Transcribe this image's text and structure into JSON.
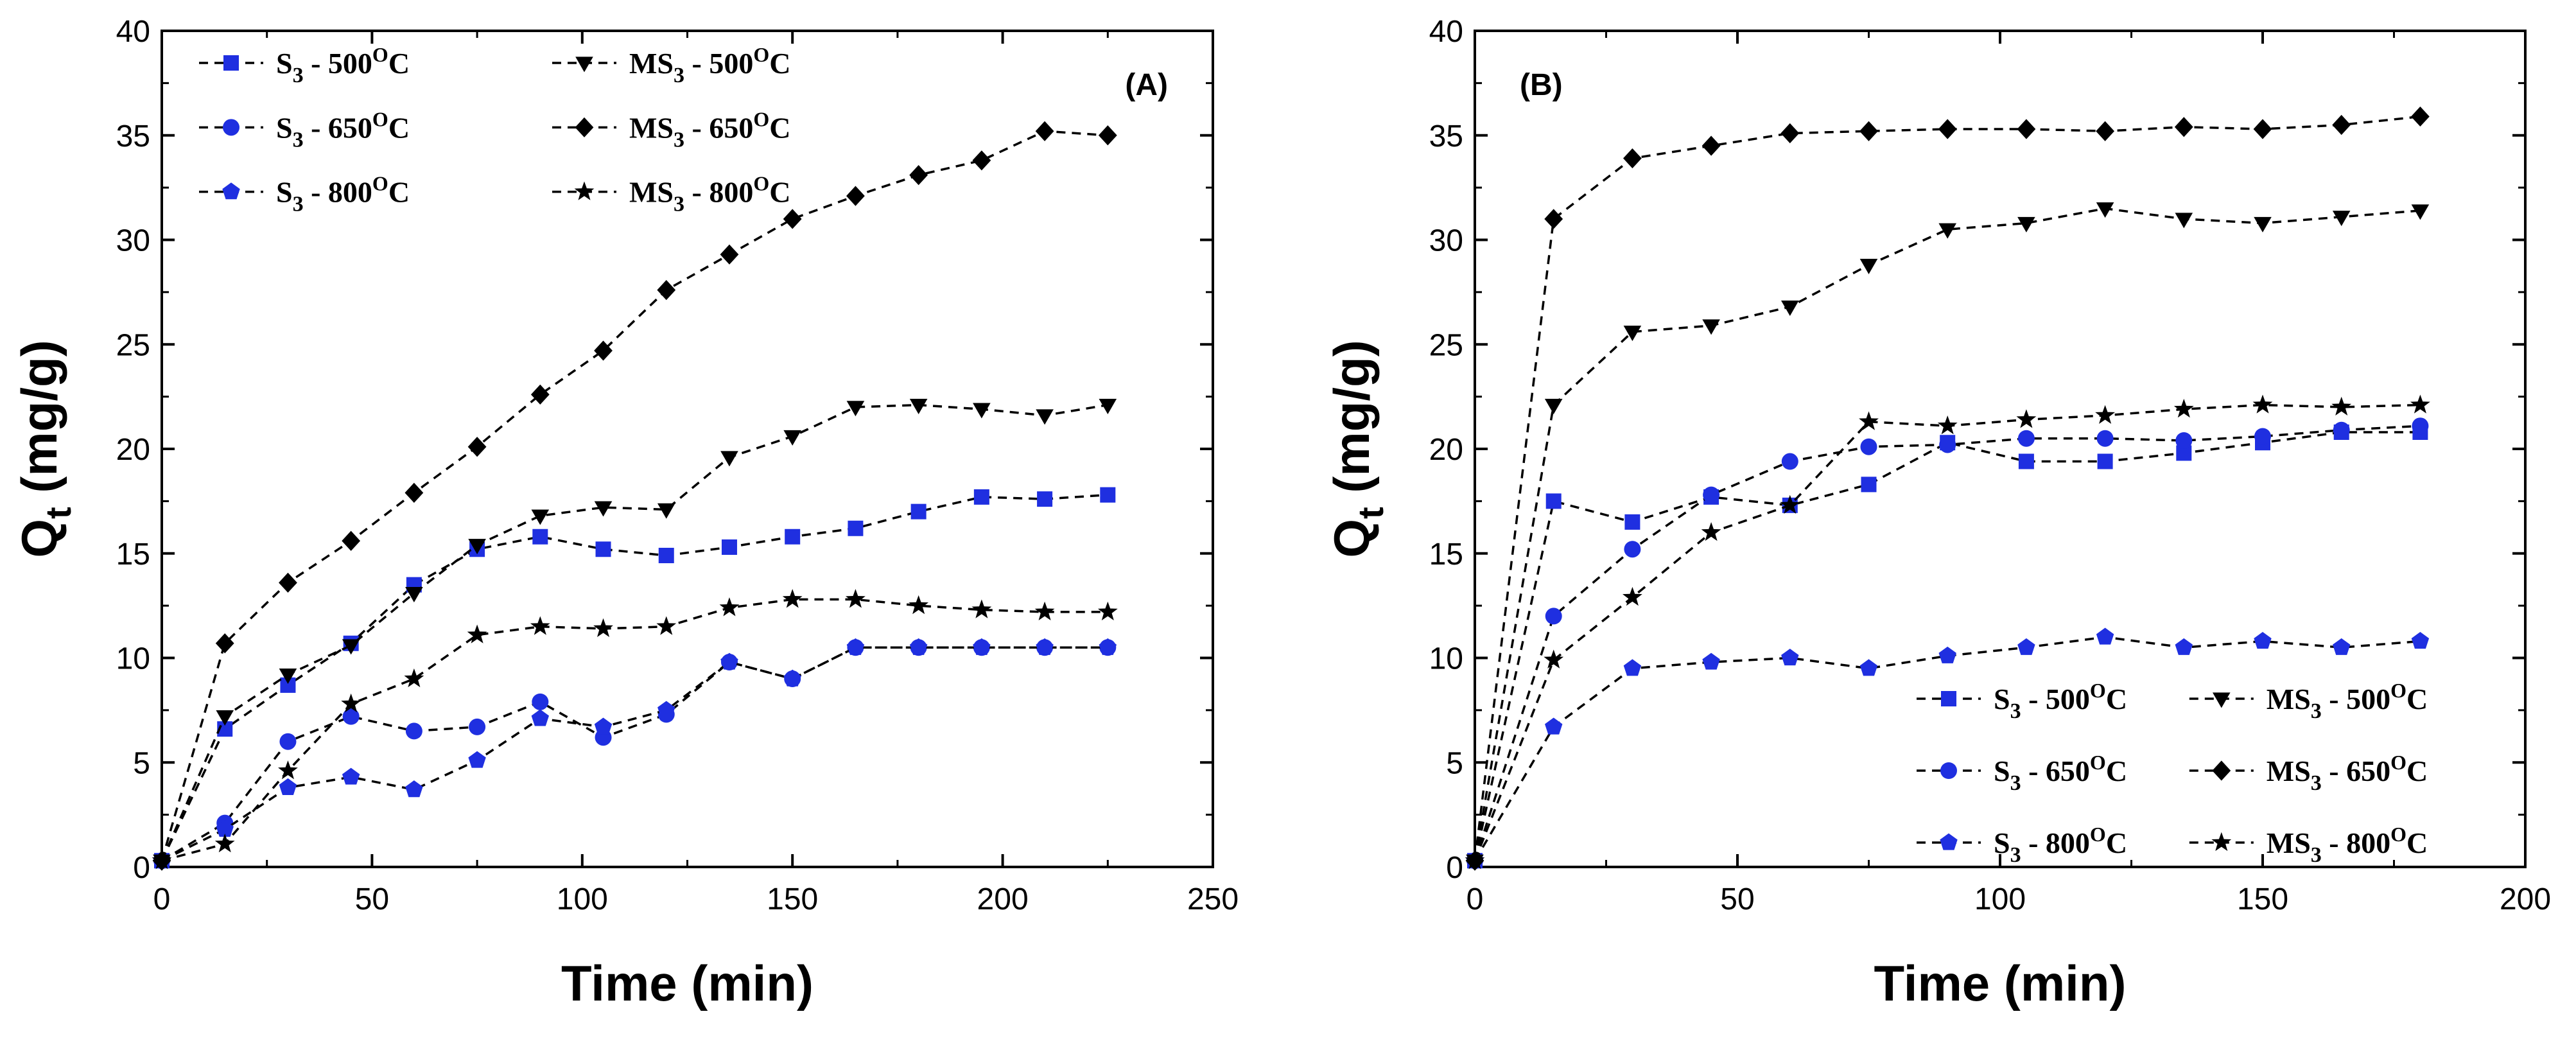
{
  "chart_data": [
    {
      "type": "line",
      "panel_label": "(A)",
      "xlabel": "Time (min)",
      "ylabel": "Q",
      "ylabel_sub": "t",
      "ylabel_unit": " (mg/g)",
      "xlim": [
        0,
        250
      ],
      "ylim": [
        0,
        40
      ],
      "xticks": [
        0,
        50,
        100,
        150,
        200,
        250
      ],
      "yticks": [
        0,
        5,
        10,
        15,
        20,
        25,
        30,
        35,
        40
      ],
      "grid": false,
      "legend_position": "top-left",
      "series": [
        {
          "name_main": "S",
          "name_sub": "3",
          "name_rest": " - 500",
          "name_sup": "O",
          "name_unit": "C",
          "color": "#1f2fe0",
          "marker": "square",
          "x": [
            0,
            15,
            30,
            45,
            60,
            75,
            90,
            105,
            120,
            135,
            150,
            165,
            180,
            195,
            210,
            225
          ],
          "y": [
            0.3,
            6.6,
            8.7,
            10.7,
            13.5,
            15.2,
            15.8,
            15.2,
            14.9,
            15.3,
            15.8,
            16.2,
            17.0,
            17.7,
            17.6,
            17.8
          ]
        },
        {
          "name_main": "S",
          "name_sub": "3",
          "name_rest": " - 650",
          "name_sup": "O",
          "name_unit": "C",
          "color": "#1f2fe0",
          "marker": "circle",
          "x": [
            0,
            15,
            30,
            45,
            60,
            75,
            90,
            105,
            120,
            135,
            150,
            165,
            180,
            195,
            210,
            225
          ],
          "y": [
            0.3,
            2.1,
            6.0,
            7.2,
            6.5,
            6.7,
            7.9,
            6.2,
            7.3,
            9.8,
            9.0,
            10.5,
            10.5,
            10.5,
            10.5,
            10.5
          ]
        },
        {
          "name_main": "S",
          "name_sub": "3",
          "name_rest": " - 800",
          "name_sup": "O",
          "name_unit": "C",
          "color": "#1f2fe0",
          "marker": "pentagon",
          "x": [
            0,
            15,
            30,
            45,
            60,
            75,
            90,
            105,
            120,
            135,
            150,
            165,
            180,
            195,
            210,
            225
          ],
          "y": [
            0.3,
            1.8,
            3.8,
            4.3,
            3.7,
            5.1,
            7.1,
            6.7,
            7.5,
            9.8,
            9.0,
            10.5,
            10.5,
            10.5,
            10.5,
            10.5
          ]
        },
        {
          "name_main": "MS",
          "name_sub": "3",
          "name_rest": " - 500",
          "name_sup": "O",
          "name_unit": "C",
          "color": "#000000",
          "marker": "triangle-down",
          "x": [
            0,
            15,
            30,
            45,
            60,
            75,
            90,
            105,
            120,
            135,
            150,
            165,
            180,
            195,
            210,
            225
          ],
          "y": [
            0.3,
            7.2,
            9.2,
            10.6,
            13.1,
            15.4,
            16.8,
            17.2,
            17.1,
            19.6,
            20.6,
            22.0,
            22.1,
            21.9,
            21.6,
            22.1
          ]
        },
        {
          "name_main": "MS",
          "name_sub": "3",
          "name_rest": " - 650",
          "name_sup": "O",
          "name_unit": "C",
          "color": "#000000",
          "marker": "diamond",
          "x": [
            0,
            15,
            30,
            45,
            60,
            75,
            90,
            105,
            120,
            135,
            150,
            165,
            180,
            195,
            210,
            225
          ],
          "y": [
            0.3,
            10.7,
            13.6,
            15.6,
            17.9,
            20.1,
            22.6,
            24.7,
            27.6,
            29.3,
            31.0,
            32.1,
            33.1,
            33.8,
            35.2,
            35.0
          ]
        },
        {
          "name_main": "MS",
          "name_sub": "3",
          "name_rest": " - 800",
          "name_sup": "O",
          "name_unit": "C",
          "color": "#000000",
          "marker": "star",
          "x": [
            0,
            15,
            30,
            45,
            60,
            75,
            90,
            105,
            120,
            135,
            150,
            165,
            180,
            195,
            210,
            225
          ],
          "y": [
            0.3,
            1.1,
            4.6,
            7.8,
            9.0,
            11.1,
            11.5,
            11.4,
            11.5,
            12.4,
            12.8,
            12.8,
            12.5,
            12.3,
            12.2,
            12.2
          ]
        }
      ]
    },
    {
      "type": "line",
      "panel_label": "(B)",
      "xlabel": "Time (min)",
      "ylabel": "Q",
      "ylabel_sub": "t",
      "ylabel_unit": " (mg/g)",
      "xlim": [
        0,
        200
      ],
      "ylim": [
        0,
        40
      ],
      "xticks": [
        0,
        50,
        100,
        150,
        200
      ],
      "yticks": [
        0,
        5,
        10,
        15,
        20,
        25,
        30,
        35,
        40
      ],
      "grid": false,
      "legend_position": "bottom-right",
      "series": [
        {
          "name_main": "S",
          "name_sub": "3",
          "name_rest": " - 500",
          "name_sup": "O",
          "name_unit": "C",
          "color": "#1f2fe0",
          "marker": "square",
          "x": [
            0,
            15,
            30,
            45,
            60,
            75,
            90,
            105,
            120,
            135,
            150,
            165,
            180
          ],
          "y": [
            0.3,
            17.5,
            16.5,
            17.7,
            17.3,
            18.3,
            20.3,
            19.4,
            19.4,
            19.8,
            20.3,
            20.8,
            20.8
          ]
        },
        {
          "name_main": "S",
          "name_sub": "3",
          "name_rest": " - 650",
          "name_sup": "O",
          "name_unit": "C",
          "color": "#1f2fe0",
          "marker": "circle",
          "x": [
            0,
            15,
            30,
            45,
            60,
            75,
            90,
            105,
            120,
            135,
            150,
            165,
            180
          ],
          "y": [
            0.3,
            12.0,
            15.2,
            17.8,
            19.4,
            20.1,
            20.2,
            20.5,
            20.5,
            20.4,
            20.6,
            20.9,
            21.1
          ]
        },
        {
          "name_main": "S",
          "name_sub": "3",
          "name_rest": " - 800",
          "name_sup": "O",
          "name_unit": "C",
          "color": "#1f2fe0",
          "marker": "pentagon",
          "x": [
            0,
            15,
            30,
            45,
            60,
            75,
            90,
            105,
            120,
            135,
            150,
            165,
            180
          ],
          "y": [
            0.3,
            6.7,
            9.5,
            9.8,
            10.0,
            9.5,
            10.1,
            10.5,
            11.0,
            10.5,
            10.8,
            10.5,
            10.8
          ]
        },
        {
          "name_main": "MS",
          "name_sub": "3",
          "name_rest": " - 500",
          "name_sup": "O",
          "name_unit": "C",
          "color": "#000000",
          "marker": "triangle-down",
          "x": [
            0,
            15,
            30,
            45,
            60,
            75,
            90,
            105,
            120,
            135,
            150,
            165,
            180
          ],
          "y": [
            0.3,
            22.1,
            25.6,
            25.9,
            26.8,
            28.8,
            30.5,
            30.8,
            31.5,
            31.0,
            30.8,
            31.1,
            31.4
          ]
        },
        {
          "name_main": "MS",
          "name_sub": "3",
          "name_rest": " - 650",
          "name_sup": "O",
          "name_unit": "C",
          "color": "#000000",
          "marker": "diamond",
          "x": [
            0,
            15,
            30,
            45,
            60,
            75,
            90,
            105,
            120,
            135,
            150,
            165,
            180
          ],
          "y": [
            0.3,
            31.0,
            33.9,
            34.5,
            35.1,
            35.2,
            35.3,
            35.3,
            35.2,
            35.4,
            35.3,
            35.5,
            35.9
          ]
        },
        {
          "name_main": "MS",
          "name_sub": "3",
          "name_rest": " - 800",
          "name_sup": "O",
          "name_unit": "C",
          "color": "#000000",
          "marker": "star",
          "x": [
            0,
            15,
            30,
            45,
            60,
            75,
            90,
            105,
            120,
            135,
            150,
            165,
            180
          ],
          "y": [
            0.3,
            9.9,
            12.9,
            16.0,
            17.3,
            21.3,
            21.1,
            21.4,
            21.6,
            21.9,
            22.1,
            22.0,
            22.1
          ]
        }
      ]
    }
  ]
}
